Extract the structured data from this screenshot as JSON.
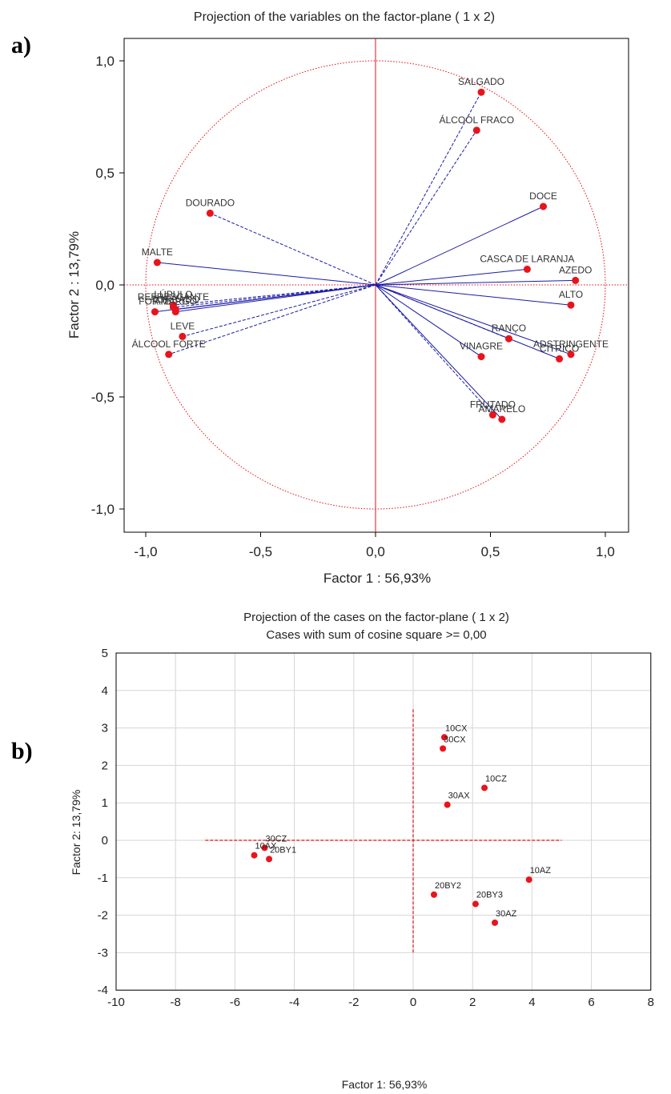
{
  "panels": {
    "a": "a)",
    "b": "b)"
  },
  "colors": {
    "points": "#e8141c",
    "vectors": "#1a1aa8",
    "axes_lines": "#e01010",
    "frame": "#000000"
  },
  "chart_data": [
    {
      "type": "scatter",
      "title": "Projection of the variables on the factor-plane (  1 x   2)",
      "xlabel": "Factor 1 : 56,93%",
      "ylabel": "Factor 2 : 13,79%",
      "xlim": [
        -1.1,
        1.1
      ],
      "ylim": [
        -1.1,
        1.1
      ],
      "x_ticks": [
        "-1,0",
        "-0,5",
        "0,0",
        "0,5",
        "1,0"
      ],
      "y_ticks": [
        "1,0",
        "0,5",
        "0,0",
        "-0,5",
        "-1,0"
      ],
      "unit_circle": true,
      "vectors_from_origin": true,
      "points": [
        {
          "label": "SALGADO",
          "x": 0.46,
          "y": 0.86,
          "line": "dashed"
        },
        {
          "label": "ÁLCOOL FRACO",
          "x": 0.44,
          "y": 0.69,
          "line": "dashed"
        },
        {
          "label": "DOCE",
          "x": 0.73,
          "y": 0.35,
          "line": "solid"
        },
        {
          "label": "CASCA DE LARANJA",
          "x": 0.66,
          "y": 0.07,
          "line": "solid"
        },
        {
          "label": "AZEDO",
          "x": 0.87,
          "y": 0.02,
          "line": "solid"
        },
        {
          "label": "ALTO",
          "x": 0.85,
          "y": -0.09,
          "line": "solid"
        },
        {
          "label": "RANÇO",
          "x": 0.58,
          "y": -0.24,
          "line": "dashed"
        },
        {
          "label": "VINAGRE",
          "x": 0.46,
          "y": -0.32,
          "line": "solid"
        },
        {
          "label": "ADSTRINGENTE",
          "x": 0.85,
          "y": -0.31,
          "line": "solid"
        },
        {
          "label": "CÍTRICO",
          "x": 0.8,
          "y": -0.33,
          "line": "solid"
        },
        {
          "label": "FRUTADO",
          "x": 0.51,
          "y": -0.58,
          "line": "dashed"
        },
        {
          "label": "AMARELO",
          "x": 0.55,
          "y": -0.6,
          "line": "solid"
        },
        {
          "label": "DOURADO",
          "x": -0.72,
          "y": 0.32,
          "line": "dashed"
        },
        {
          "label": "MALTE",
          "x": -0.95,
          "y": 0.1,
          "line": "solid"
        },
        {
          "label": "LÚPULO",
          "x": -0.88,
          "y": -0.09,
          "line": "dashed"
        },
        {
          "label": "REFRESCANTE",
          "x": -0.88,
          "y": -0.1,
          "line": "dashed"
        },
        {
          "label": "TORRADO",
          "x": -0.87,
          "y": -0.11,
          "line": "solid"
        },
        {
          "label": "AMARGO",
          "x": -0.87,
          "y": -0.12,
          "line": "solid"
        },
        {
          "label": "FORTE",
          "x": -0.96,
          "y": -0.12,
          "line": "solid"
        },
        {
          "label": "LEVE",
          "x": -0.84,
          "y": -0.23,
          "line": "dashed"
        },
        {
          "label": "ÁLCOOL FORTE",
          "x": -0.9,
          "y": -0.31,
          "line": "dashed"
        }
      ]
    },
    {
      "type": "scatter",
      "title": "Projection of the cases on the factor-plane (  1 x   2)",
      "subtitle": "Cases with sum of cosine square >=  0,00",
      "xlabel": "Factor 1: 56,93%",
      "ylabel": "Factor 2: 13,79%",
      "xlim": [
        -10,
        8
      ],
      "ylim": [
        -4,
        5
      ],
      "x_ticks": [
        "-10",
        "-8",
        "-6",
        "-4",
        "-2",
        "0",
        "2",
        "4",
        "6",
        "8"
      ],
      "y_ticks": [
        "5",
        "4",
        "3",
        "2",
        "1",
        "0",
        "-1",
        "-2",
        "-3",
        "-4"
      ],
      "grid": true,
      "points": [
        {
          "label": "10CX",
          "x": 1.05,
          "y": 2.75
        },
        {
          "label": "30CX",
          "x": 1.0,
          "y": 2.45
        },
        {
          "label": "10CZ",
          "x": 2.4,
          "y": 1.4
        },
        {
          "label": "30AX",
          "x": 1.15,
          "y": 0.95
        },
        {
          "label": "30CZ",
          "x": -5.0,
          "y": -0.2
        },
        {
          "label": "10AX",
          "x": -5.35,
          "y": -0.4
        },
        {
          "label": "20BY1",
          "x": -4.85,
          "y": -0.5
        },
        {
          "label": "10AZ",
          "x": 3.9,
          "y": -1.05
        },
        {
          "label": "20BY2",
          "x": 0.7,
          "y": -1.45
        },
        {
          "label": "20BY3",
          "x": 2.1,
          "y": -1.7
        },
        {
          "label": "30AZ",
          "x": 2.75,
          "y": -2.2
        }
      ]
    }
  ]
}
